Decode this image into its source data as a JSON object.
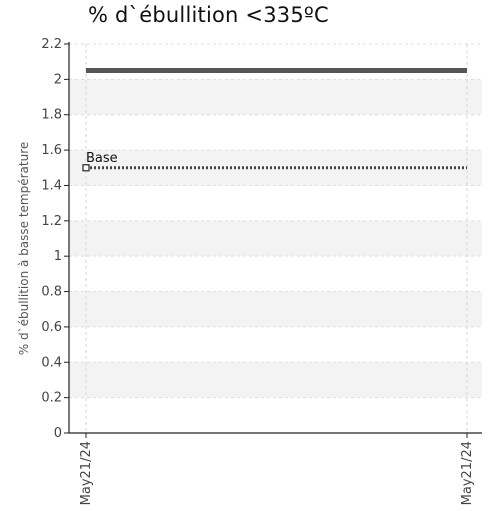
{
  "chart_data": {
    "type": "line",
    "title": "% d`ébullition <335ºC",
    "ylabel": "% d`ébullition à basse température",
    "xlabel": "",
    "x": [
      "May21/24",
      "May21/24"
    ],
    "xticks": [
      "May21/24",
      "May21/24"
    ],
    "ylim": [
      0,
      2.2
    ],
    "yticks": [
      0,
      0.2,
      0.4,
      0.6,
      0.8,
      1,
      1.2,
      1.4,
      1.6,
      1.8,
      2,
      2.2
    ],
    "series": [
      {
        "values": [
          2.05,
          2.05
        ],
        "color": "#555555",
        "style": "solid"
      },
      {
        "values": [
          1.5,
          1.5
        ],
        "color": "#444444",
        "style": "dotted"
      }
    ],
    "annotations": [
      {
        "text": "Base",
        "y": 1.5
      }
    ],
    "grid": "alternating horizontal bands",
    "legend": "none"
  }
}
